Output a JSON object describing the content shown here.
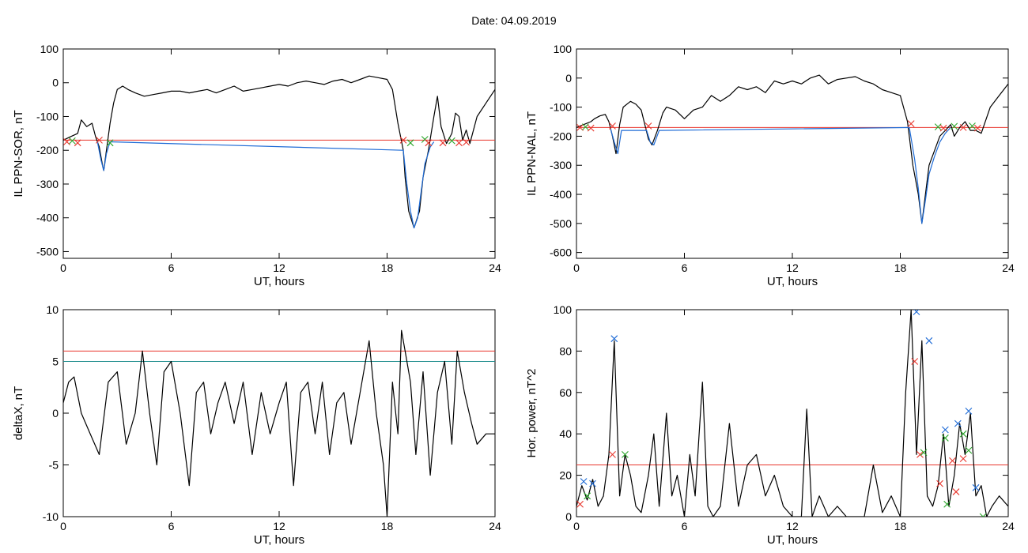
{
  "figure": {
    "title": "Date:  04.09.2019"
  },
  "chart_data": [
    {
      "type": "line",
      "ylabel": "IL PPN-SOR, nT",
      "xlabel": "UT, hours",
      "xlim": [
        0,
        24
      ],
      "ylim": [
        -520,
        100
      ],
      "xticks": [
        0,
        6,
        12,
        18,
        24
      ],
      "yticks": [
        -500,
        -400,
        -300,
        -200,
        -100,
        0,
        100
      ],
      "hlines": [
        {
          "y": -170,
          "color": "#e8352c"
        }
      ],
      "series": [
        {
          "color": "#000000",
          "x": [
            0,
            0.4,
            0.8,
            1.0,
            1.3,
            1.6,
            1.8,
            2.0,
            2.2,
            2.25,
            2.4,
            2.6,
            2.8,
            3.0,
            3.3,
            3.6,
            4.0,
            4.5,
            5.0,
            5.5,
            6.0,
            6.5,
            7.0,
            7.5,
            8.0,
            8.5,
            9.0,
            9.5,
            10.0,
            10.5,
            11.0,
            11.5,
            12.0,
            12.5,
            13.0,
            13.5,
            14.0,
            14.5,
            15.0,
            15.5,
            16.0,
            16.5,
            17.0,
            17.5,
            18.0,
            18.3,
            18.6,
            18.9,
            19.0,
            19.2,
            19.5,
            19.8,
            20.0,
            20.3,
            20.6,
            20.8,
            21.0,
            21.3,
            21.6,
            21.8,
            22.0,
            22.2,
            22.4,
            22.6,
            23.0,
            23.5,
            24.0
          ],
          "y": [
            -170,
            -160,
            -150,
            -110,
            -130,
            -120,
            -160,
            -190,
            -250,
            -260,
            -200,
            -120,
            -60,
            -20,
            -10,
            -20,
            -30,
            -40,
            -35,
            -30,
            -25,
            -25,
            -30,
            -25,
            -20,
            -30,
            -20,
            -10,
            -25,
            -20,
            -15,
            -10,
            -5,
            -10,
            0,
            5,
            0,
            -5,
            5,
            10,
            0,
            10,
            20,
            15,
            10,
            -20,
            -120,
            -200,
            -280,
            -380,
            -430,
            -380,
            -280,
            -200,
            -100,
            -40,
            -130,
            -180,
            -150,
            -90,
            -100,
            -170,
            -140,
            -180,
            -100,
            -60,
            -20
          ]
        },
        {
          "color": "#1e6bd6",
          "x": [
            1.9,
            2.1,
            2.25,
            2.4,
            2.6,
            18.9,
            19.1,
            19.3,
            19.5,
            19.7,
            19.9,
            20.1,
            20.4,
            20.6
          ],
          "y": [
            -175,
            -230,
            -260,
            -210,
            -175,
            -200,
            -300,
            -380,
            -430,
            -400,
            -320,
            -240,
            -190,
            -175
          ]
        }
      ],
      "markers": [
        {
          "x": 0.2,
          "y": -175,
          "color": "#e8352c"
        },
        {
          "x": 0.5,
          "y": -172,
          "color": "#2aa52a"
        },
        {
          "x": 0.8,
          "y": -178,
          "color": "#e8352c"
        },
        {
          "x": 2.0,
          "y": -170,
          "color": "#e8352c"
        },
        {
          "x": 2.6,
          "y": -178,
          "color": "#2aa52a"
        },
        {
          "x": 18.9,
          "y": -170,
          "color": "#e8352c"
        },
        {
          "x": 19.3,
          "y": -178,
          "color": "#2aa52a"
        },
        {
          "x": 20.1,
          "y": -168,
          "color": "#2aa52a"
        },
        {
          "x": 20.3,
          "y": -178,
          "color": "#e8352c"
        },
        {
          "x": 21.1,
          "y": -178,
          "color": "#e8352c"
        },
        {
          "x": 21.6,
          "y": -172,
          "color": "#2aa52a"
        },
        {
          "x": 22.0,
          "y": -178,
          "color": "#e8352c"
        },
        {
          "x": 22.4,
          "y": -176,
          "color": "#e8352c"
        }
      ]
    },
    {
      "type": "line",
      "ylabel": "IL PPN-NAL, nT",
      "xlabel": "UT, hours",
      "xlim": [
        0,
        24
      ],
      "ylim": [
        -620,
        100
      ],
      "xticks": [
        0,
        6,
        12,
        18,
        24
      ],
      "yticks": [
        -600,
        -500,
        -400,
        -300,
        -200,
        -100,
        0,
        100
      ],
      "hlines": [
        {
          "y": -170,
          "color": "#e8352c"
        }
      ],
      "series": [
        {
          "color": "#000000",
          "x": [
            0,
            0.4,
            0.8,
            1.0,
            1.3,
            1.6,
            1.8,
            2.0,
            2.2,
            2.4,
            2.6,
            3.0,
            3.3,
            3.6,
            4.0,
            4.2,
            4.5,
            4.8,
            5.0,
            5.5,
            6.0,
            6.5,
            7.0,
            7.5,
            8.0,
            8.5,
            9.0,
            9.5,
            10.0,
            10.5,
            11.0,
            11.5,
            12.0,
            12.5,
            13.0,
            13.5,
            14.0,
            14.5,
            15.0,
            15.5,
            16.0,
            16.5,
            17.0,
            17.5,
            18.0,
            18.4,
            18.7,
            19.0,
            19.2,
            19.4,
            19.6,
            19.9,
            20.2,
            20.5,
            20.8,
            21.0,
            21.3,
            21.6,
            21.9,
            22.2,
            22.5,
            23.0,
            23.5,
            24.0
          ],
          "y": [
            -170,
            -160,
            -150,
            -140,
            -130,
            -125,
            -150,
            -200,
            -260,
            -160,
            -100,
            -80,
            -90,
            -110,
            -210,
            -230,
            -180,
            -120,
            -100,
            -110,
            -140,
            -110,
            -100,
            -60,
            -80,
            -60,
            -30,
            -40,
            -30,
            -50,
            -10,
            -20,
            -10,
            -20,
            0,
            10,
            -20,
            -5,
            0,
            5,
            -10,
            -20,
            -40,
            -50,
            -60,
            -150,
            -300,
            -400,
            -500,
            -400,
            -300,
            -250,
            -200,
            -180,
            -160,
            -200,
            -170,
            -150,
            -180,
            -180,
            -190,
            -100,
            -60,
            -20
          ]
        },
        {
          "color": "#1e6bd6",
          "x": [
            1.9,
            2.1,
            2.3,
            2.5,
            3.9,
            4.1,
            4.3,
            4.6,
            18.5,
            18.8,
            19.0,
            19.2,
            19.4,
            19.6,
            19.9,
            20.2,
            20.5,
            20.8
          ],
          "y": [
            -175,
            -220,
            -260,
            -180,
            -180,
            -220,
            -230,
            -180,
            -170,
            -280,
            -380,
            -500,
            -420,
            -330,
            -270,
            -220,
            -190,
            -170
          ]
        }
      ],
      "markers": [
        {
          "x": 0.2,
          "y": -170,
          "color": "#e8352c"
        },
        {
          "x": 0.5,
          "y": -168,
          "color": "#2aa52a"
        },
        {
          "x": 0.8,
          "y": -172,
          "color": "#e8352c"
        },
        {
          "x": 2.0,
          "y": -165,
          "color": "#e8352c"
        },
        {
          "x": 4.0,
          "y": -165,
          "color": "#e8352c"
        },
        {
          "x": 18.6,
          "y": -157,
          "color": "#e8352c"
        },
        {
          "x": 20.1,
          "y": -168,
          "color": "#2aa52a"
        },
        {
          "x": 20.4,
          "y": -172,
          "color": "#e8352c"
        },
        {
          "x": 21.0,
          "y": -166,
          "color": "#2aa52a"
        },
        {
          "x": 21.5,
          "y": -170,
          "color": "#e8352c"
        },
        {
          "x": 22.0,
          "y": -165,
          "color": "#2aa52a"
        },
        {
          "x": 22.3,
          "y": -172,
          "color": "#e8352c"
        }
      ]
    },
    {
      "type": "line",
      "ylabel": "deltaX, nT",
      "xlabel": "UT, hours",
      "xlim": [
        0,
        24
      ],
      "ylim": [
        -10,
        10
      ],
      "xticks": [
        0,
        6,
        12,
        18,
        24
      ],
      "yticks": [
        -10,
        -5,
        0,
        5,
        10
      ],
      "hlines": [
        {
          "y": 6,
          "color": "#e8352c"
        },
        {
          "y": 5,
          "color": "#1e8c8c"
        }
      ],
      "series": [
        {
          "color": "#000000",
          "x": [
            0,
            0.3,
            0.6,
            1.0,
            1.5,
            2.0,
            2.5,
            3.0,
            3.5,
            4.0,
            4.4,
            4.8,
            5.2,
            5.6,
            6.0,
            6.5,
            7.0,
            7.4,
            7.8,
            8.2,
            8.6,
            9.0,
            9.5,
            10.0,
            10.5,
            11.0,
            11.5,
            12.0,
            12.4,
            12.8,
            13.2,
            13.6,
            14.0,
            14.4,
            14.8,
            15.2,
            15.6,
            16.0,
            16.5,
            17.0,
            17.4,
            17.8,
            18.0,
            18.3,
            18.6,
            18.8,
            19.0,
            19.3,
            19.6,
            20.0,
            20.4,
            20.8,
            21.2,
            21.6,
            21.9,
            22.3,
            22.7,
            23.0,
            23.5,
            24.0
          ],
          "y": [
            1,
            3,
            3.5,
            0,
            -2,
            -4,
            3,
            4,
            -3,
            0,
            6,
            0,
            -5,
            4,
            5,
            0,
            -7,
            2,
            3,
            -2,
            1,
            3,
            -1,
            3,
            -4,
            2,
            -2,
            1,
            3,
            -7,
            2,
            3,
            -2,
            3,
            -4,
            1,
            2,
            -3,
            2,
            7,
            0,
            -5,
            -10,
            3,
            -2,
            8,
            6,
            3,
            -4,
            4,
            -6,
            2,
            5,
            -3,
            6,
            2,
            -1,
            -3,
            -2,
            -2
          ]
        }
      ],
      "markers": []
    },
    {
      "type": "line",
      "ylabel": "Hor. power, nT^2",
      "xlabel": "UT, hours",
      "xlim": [
        0,
        24
      ],
      "ylim": [
        0,
        100
      ],
      "xticks": [
        0,
        6,
        12,
        18,
        24
      ],
      "yticks": [
        0,
        20,
        40,
        60,
        80,
        100
      ],
      "hlines": [
        {
          "y": 25,
          "color": "#e8352c"
        }
      ],
      "series": [
        {
          "color": "#000000",
          "x": [
            0,
            0.3,
            0.6,
            0.9,
            1.2,
            1.5,
            1.8,
            2.1,
            2.4,
            2.7,
            3.0,
            3.3,
            3.6,
            4.0,
            4.3,
            4.6,
            5.0,
            5.3,
            5.6,
            6.0,
            6.3,
            6.6,
            7.0,
            7.3,
            7.6,
            8.0,
            8.5,
            9.0,
            9.5,
            10.0,
            10.5,
            11.0,
            11.5,
            12.0,
            12.5,
            12.8,
            13.1,
            13.5,
            14.0,
            14.5,
            15.0,
            15.5,
            16.0,
            16.5,
            17.0,
            17.5,
            18.0,
            18.3,
            18.6,
            18.9,
            19.2,
            19.5,
            19.8,
            20.1,
            20.4,
            20.7,
            21.0,
            21.3,
            21.6,
            21.9,
            22.2,
            22.5,
            22.8,
            23.1,
            23.5,
            24.0
          ],
          "y": [
            5,
            15,
            8,
            18,
            5,
            10,
            30,
            85,
            10,
            30,
            20,
            5,
            2,
            20,
            40,
            5,
            50,
            10,
            20,
            0,
            30,
            10,
            65,
            5,
            0,
            5,
            45,
            5,
            25,
            30,
            10,
            20,
            5,
            0,
            0,
            52,
            0,
            10,
            0,
            5,
            0,
            0,
            0,
            25,
            2,
            10,
            0,
            60,
            100,
            30,
            85,
            10,
            5,
            15,
            40,
            5,
            20,
            45,
            30,
            50,
            10,
            15,
            0,
            5,
            10,
            5
          ]
        }
      ],
      "markers": [
        {
          "x": 0.2,
          "y": 6,
          "color": "#e8352c"
        },
        {
          "x": 0.4,
          "y": 17,
          "color": "#1e6bd6"
        },
        {
          "x": 0.6,
          "y": 10,
          "color": "#2aa52a"
        },
        {
          "x": 0.9,
          "y": 16,
          "color": "#1e6bd6"
        },
        {
          "x": 2.0,
          "y": 30,
          "color": "#e8352c"
        },
        {
          "x": 2.1,
          "y": 86,
          "color": "#1e6bd6"
        },
        {
          "x": 2.7,
          "y": 30,
          "color": "#2aa52a"
        },
        {
          "x": 18.8,
          "y": 75,
          "color": "#e8352c"
        },
        {
          "x": 18.9,
          "y": 99,
          "color": "#1e6bd6"
        },
        {
          "x": 19.1,
          "y": 30,
          "color": "#e8352c"
        },
        {
          "x": 19.3,
          "y": 31,
          "color": "#2aa52a"
        },
        {
          "x": 19.6,
          "y": 85,
          "color": "#1e6bd6"
        },
        {
          "x": 20.2,
          "y": 16,
          "color": "#e8352c"
        },
        {
          "x": 20.5,
          "y": 42,
          "color": "#1e6bd6"
        },
        {
          "x": 20.5,
          "y": 38,
          "color": "#2aa52a"
        },
        {
          "x": 20.6,
          "y": 6,
          "color": "#2aa52a"
        },
        {
          "x": 20.9,
          "y": 27,
          "color": "#e8352c"
        },
        {
          "x": 21.1,
          "y": 12,
          "color": "#e8352c"
        },
        {
          "x": 21.2,
          "y": 45,
          "color": "#1e6bd6"
        },
        {
          "x": 21.5,
          "y": 28,
          "color": "#e8352c"
        },
        {
          "x": 21.5,
          "y": 40,
          "color": "#2aa52a"
        },
        {
          "x": 21.8,
          "y": 51,
          "color": "#1e6bd6"
        },
        {
          "x": 21.8,
          "y": 32,
          "color": "#2aa52a"
        },
        {
          "x": 22.2,
          "y": 14,
          "color": "#1e6bd6"
        },
        {
          "x": 22.6,
          "y": 0,
          "color": "#2aa52a"
        }
      ]
    }
  ]
}
